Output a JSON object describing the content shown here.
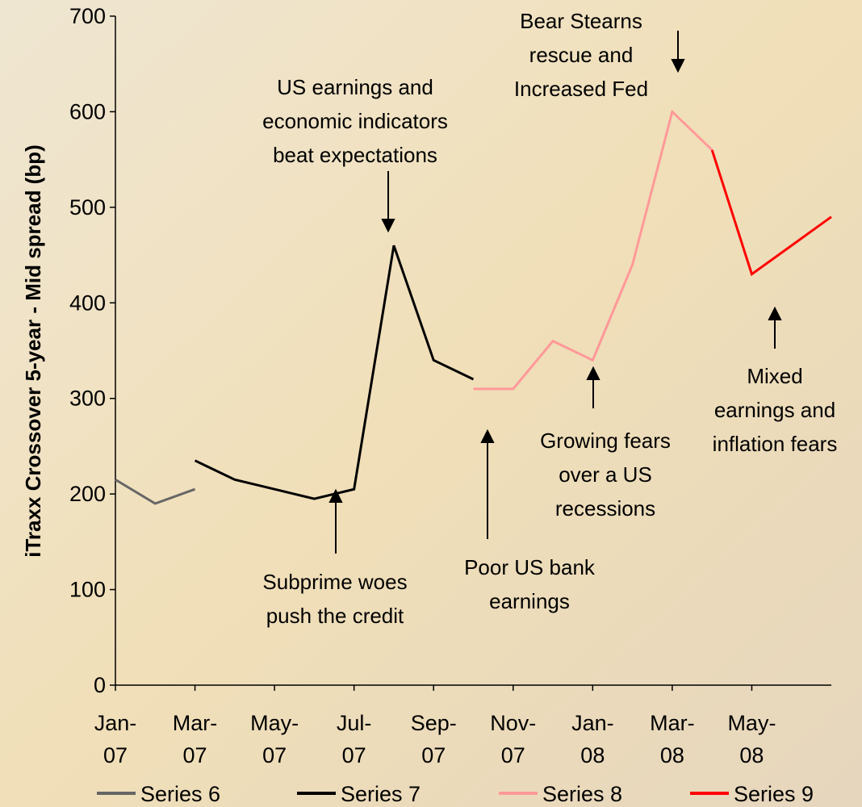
{
  "chart_data": {
    "type": "line",
    "y_label": "iTraxx Crossover 5-year - Mid spread (bp)",
    "xlim": [
      "2007-01",
      "2008-07"
    ],
    "xticks": [
      {
        "value": "2007-01",
        "label": "Jan-07"
      },
      {
        "value": "2007-03",
        "label": "Mar-07"
      },
      {
        "value": "2007-05",
        "label": "May-07"
      },
      {
        "value": "2007-07",
        "label": "Jul-07"
      },
      {
        "value": "2007-09",
        "label": "Sep-07"
      },
      {
        "value": "2007-11",
        "label": "Nov-07"
      },
      {
        "value": "2008-01",
        "label": "Jan-08"
      },
      {
        "value": "2008-03",
        "label": "Mar-08"
      },
      {
        "value": "2008-05",
        "label": "May-08"
      }
    ],
    "ylim": [
      0,
      700
    ],
    "yticks": [
      0,
      100,
      200,
      300,
      400,
      500,
      600,
      700
    ],
    "series": [
      {
        "name": "Series 6",
        "color": "#666666",
        "x": [
          "2007-01",
          "2007-02",
          "2007-03"
        ],
        "values": [
          215,
          190,
          205
        ]
      },
      {
        "name": "Series 7",
        "color": "#000000",
        "x": [
          "2007-03",
          "2007-04",
          "2007-05",
          "2007-06",
          "2007-07",
          "2007-08",
          "2007-09",
          "2007-10"
        ],
        "values": [
          235,
          215,
          205,
          195,
          205,
          460,
          340,
          320
        ]
      },
      {
        "name": "Series 8",
        "color": "#ff9999",
        "x": [
          "2007-10",
          "2007-11",
          "2007-12",
          "2008-01",
          "2008-02",
          "2008-03",
          "2008-04"
        ],
        "values": [
          310,
          310,
          360,
          340,
          440,
          600,
          560
        ]
      },
      {
        "name": "Series 9",
        "color": "#ff0000",
        "x": [
          "2008-04",
          "2008-05",
          "2008-06",
          "2008-07"
        ],
        "values": [
          560,
          430,
          460,
          490
        ]
      }
    ],
    "annotations": [
      {
        "lines": [
          "US earnings and",
          "economic indicators",
          "beat expectations"
        ]
      },
      {
        "lines": [
          "Bear Stearns",
          "rescue and",
          "Increased Fed"
        ]
      },
      {
        "lines": [
          "Subprime woes",
          "push the credit"
        ]
      },
      {
        "lines": [
          "Poor US bank",
          "earnings"
        ]
      },
      {
        "lines": [
          "Growing fears",
          "over a US",
          "recessions"
        ]
      },
      {
        "lines": [
          "Mixed",
          "earnings and",
          "inflation fears"
        ]
      }
    ]
  }
}
